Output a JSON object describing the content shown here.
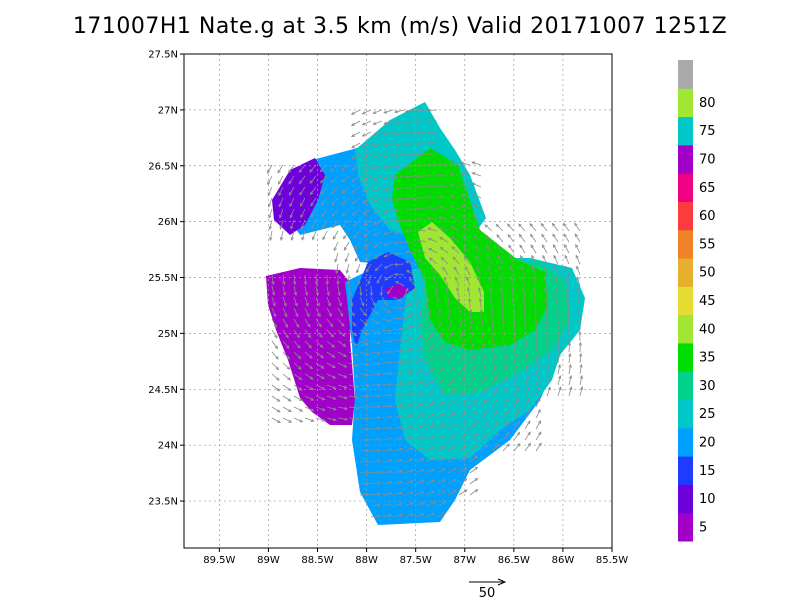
{
  "title": "171007H1 Nate.g at 3.5 km (m/s) Valid 20171007  1251Z",
  "lat_ticks": [
    {
      "label": "27.5N",
      "value": 27.5
    },
    {
      "label": "27N",
      "value": 27.0
    },
    {
      "label": "26.5N",
      "value": 26.5
    },
    {
      "label": "26N",
      "value": 26.0
    },
    {
      "label": "25.5N",
      "value": 25.5
    },
    {
      "label": "25N",
      "value": 25.0
    },
    {
      "label": "24.5N",
      "value": 24.5
    },
    {
      "label": "24N",
      "value": 24.0
    },
    {
      "label": "23.5N",
      "value": 23.5
    }
  ],
  "lon_ticks": [
    {
      "label": "89.5W",
      "value": -89.5
    },
    {
      "label": "89W",
      "value": -89.0
    },
    {
      "label": "88.5W",
      "value": -88.5
    },
    {
      "label": "88W",
      "value": -88.0
    },
    {
      "label": "87.5W",
      "value": -87.5
    },
    {
      "label": "87W",
      "value": -87.0
    },
    {
      "label": "86.5W",
      "value": -86.5
    },
    {
      "label": "86W",
      "value": -86.0
    },
    {
      "label": "85.5W",
      "value": -85.5
    }
  ],
  "colorbar": {
    "labels": [
      "5",
      "10",
      "15",
      "20",
      "25",
      "30",
      "35",
      "40",
      "45",
      "50",
      "55",
      "60",
      "65",
      "70",
      "75",
      "80"
    ],
    "colors": [
      "#a000c8",
      "#6e00dc",
      "#1e3cff",
      "#00a0ff",
      "#00c8c8",
      "#00d28c",
      "#00dc00",
      "#a0e632",
      "#e6dc32",
      "#e6af2d",
      "#f08228",
      "#fa3c3c",
      "#f00082",
      "#a000c8",
      "#00c8c8",
      "#a0e632",
      "#aaaaaa"
    ]
  },
  "reference_vector": {
    "label": "50"
  },
  "colors": {
    "axes": "#000000",
    "grid": "#999999",
    "arrows": "#8c8c8c"
  }
}
